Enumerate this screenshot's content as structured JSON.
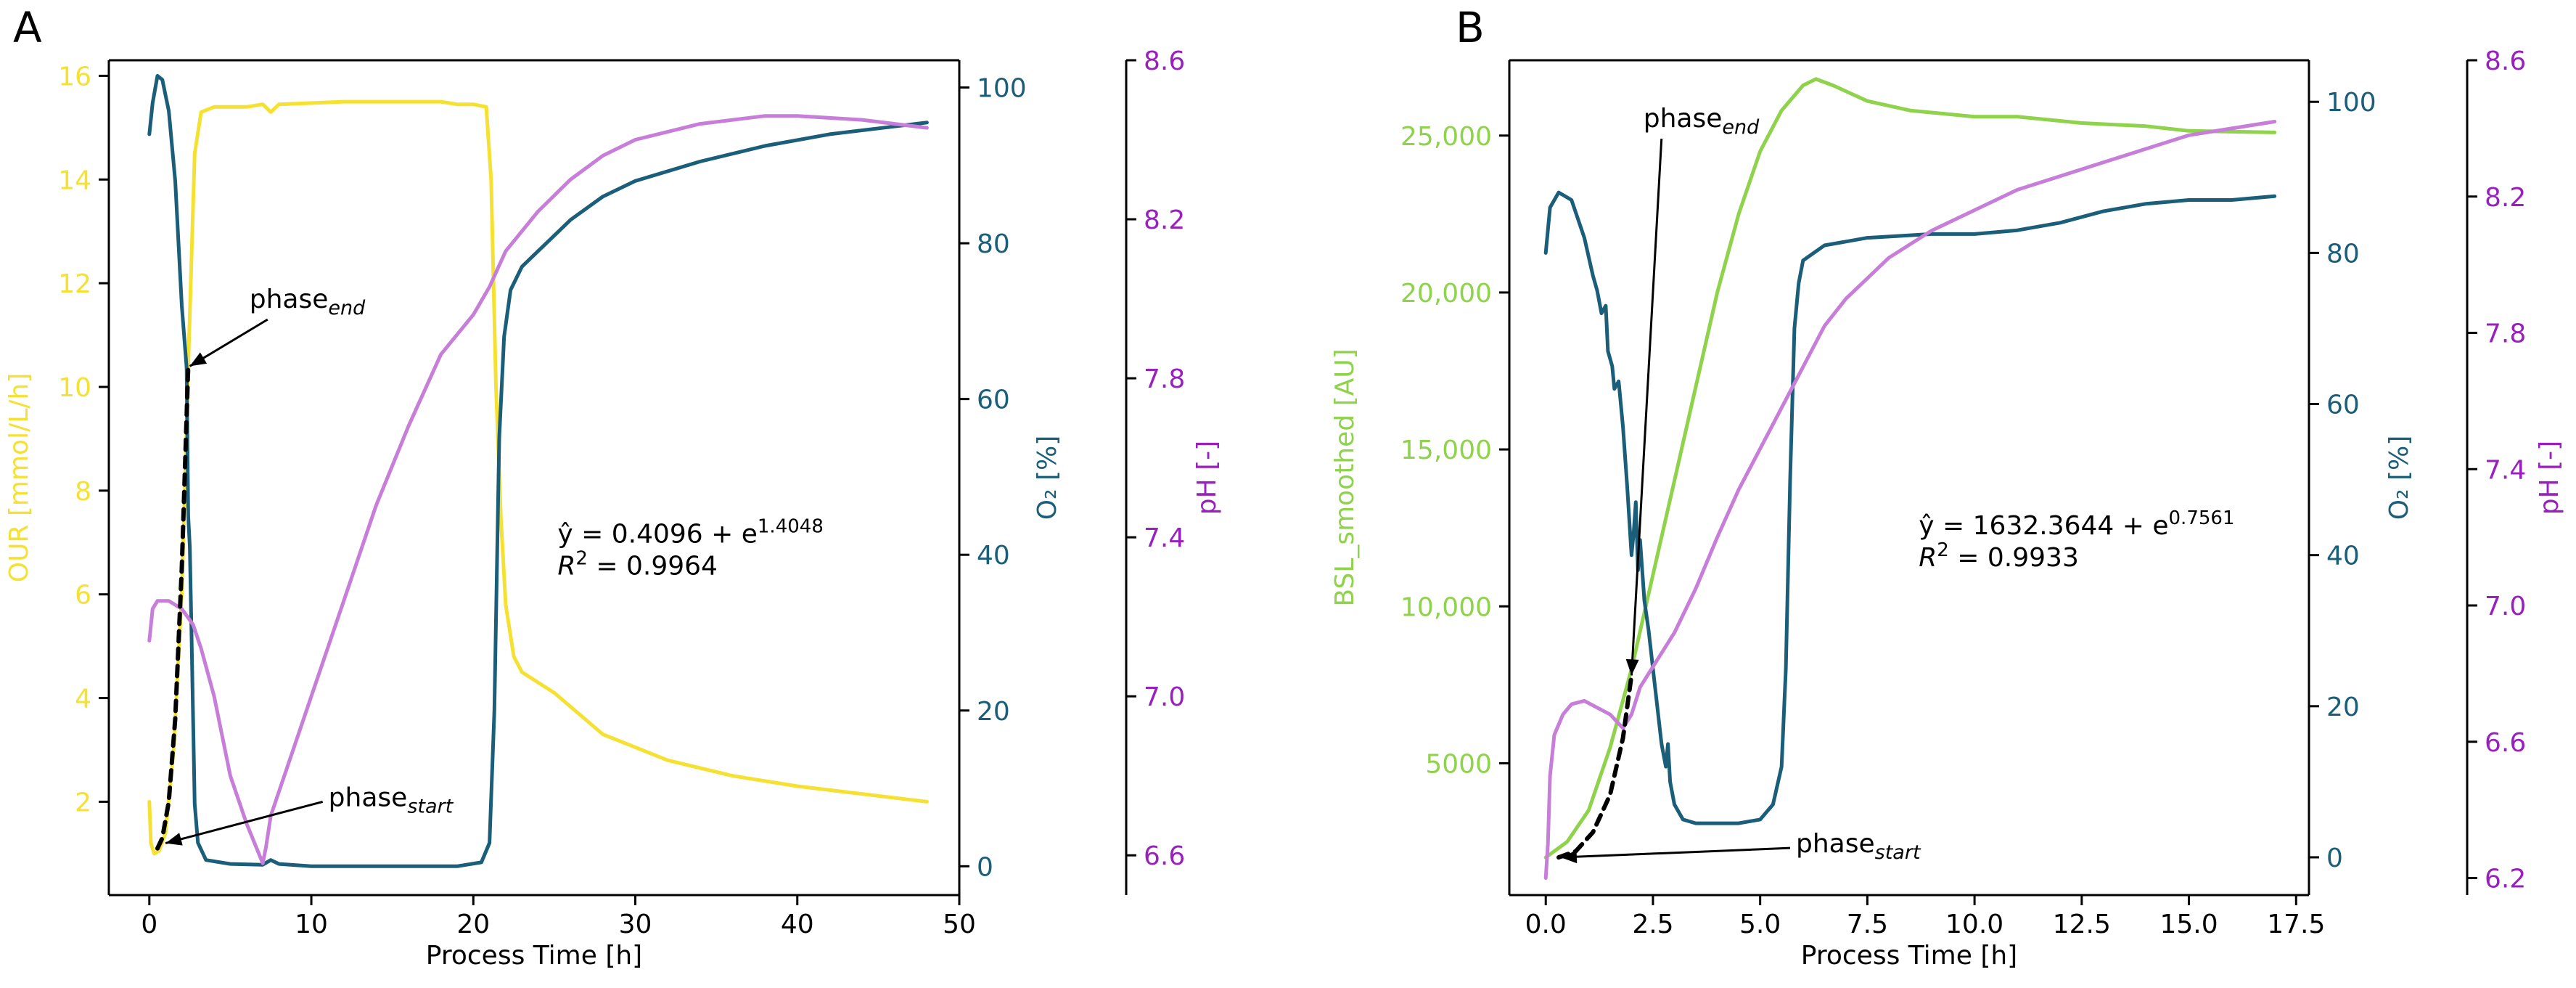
{
  "chart_data": [
    {
      "panel": "A",
      "type": "line",
      "xlabel": "Process Time [h]",
      "xlim": [
        -2.5,
        50
      ],
      "xticks": [
        0,
        10,
        20,
        30,
        40,
        50
      ],
      "axes": {
        "left": {
          "label": "OUR [mmol/L/h]",
          "color": "#f5e132",
          "ylim": [
            0.2,
            16.3
          ],
          "ticks": [
            2,
            4,
            6,
            8,
            10,
            12,
            14,
            16
          ]
        },
        "right1": {
          "label": "O₂ [%]",
          "color": "#1b5e7a",
          "ylim": [
            -3.7,
            103.5
          ],
          "ticks": [
            0,
            20,
            40,
            60,
            80,
            100
          ]
        },
        "right2": {
          "label": "pH [-]",
          "color": "#9a1fbf",
          "ylim": [
            6.5,
            8.6
          ],
          "ticks": [
            6.6,
            7.0,
            7.4,
            7.8,
            8.2,
            8.6
          ]
        }
      },
      "series": [
        {
          "axis": "left",
          "color": "#f5e132",
          "points": [
            [
              0,
              2.0
            ],
            [
              0.1,
              1.2
            ],
            [
              0.3,
              1.0
            ],
            [
              0.6,
              1.05
            ],
            [
              1.0,
              1.4
            ],
            [
              1.5,
              3
            ],
            [
              2.0,
              6
            ],
            [
              2.4,
              10.4
            ],
            [
              2.8,
              14.5
            ],
            [
              3.2,
              15.3
            ],
            [
              4,
              15.4
            ],
            [
              6,
              15.4
            ],
            [
              7,
              15.45
            ],
            [
              7.5,
              15.3
            ],
            [
              8,
              15.45
            ],
            [
              12,
              15.5
            ],
            [
              16,
              15.5
            ],
            [
              18,
              15.5
            ],
            [
              19,
              15.45
            ],
            [
              20,
              15.45
            ],
            [
              20.8,
              15.4
            ],
            [
              21.1,
              14
            ],
            [
              21.4,
              10
            ],
            [
              21.7,
              7.5
            ],
            [
              22,
              5.8
            ],
            [
              22.5,
              4.8
            ],
            [
              23,
              4.5
            ],
            [
              25,
              4.1
            ],
            [
              28,
              3.3
            ],
            [
              32,
              2.8
            ],
            [
              36,
              2.5
            ],
            [
              40,
              2.3
            ],
            [
              44,
              2.15
            ],
            [
              48,
              2.0
            ]
          ]
        },
        {
          "axis": "right1",
          "color": "#1b5e7a",
          "points": [
            [
              0,
              94
            ],
            [
              0.2,
              98
            ],
            [
              0.5,
              101.5
            ],
            [
              0.8,
              101
            ],
            [
              1.2,
              97
            ],
            [
              1.6,
              88
            ],
            [
              2.0,
              72
            ],
            [
              2.3,
              64
            ],
            [
              2.4,
              45
            ],
            [
              2.5,
              41
            ],
            [
              2.6,
              30
            ],
            [
              2.8,
              8
            ],
            [
              3,
              3
            ],
            [
              3.5,
              0.8
            ],
            [
              5,
              0.3
            ],
            [
              7,
              0.2
            ],
            [
              7.5,
              0.8
            ],
            [
              8,
              0.3
            ],
            [
              10,
              0
            ],
            [
              15,
              0
            ],
            [
              19,
              0
            ],
            [
              20.5,
              0.5
            ],
            [
              21,
              3
            ],
            [
              21.3,
              20
            ],
            [
              21.6,
              55
            ],
            [
              21.9,
              68
            ],
            [
              22.3,
              74
            ],
            [
              23,
              77
            ],
            [
              24,
              79
            ],
            [
              25,
              81
            ],
            [
              26,
              83
            ],
            [
              28,
              86
            ],
            [
              30,
              88
            ],
            [
              34,
              90.5
            ],
            [
              38,
              92.5
            ],
            [
              42,
              94
            ],
            [
              46,
              95
            ],
            [
              48,
              95.5
            ]
          ]
        },
        {
          "axis": "right2",
          "color": "#c77ed9",
          "points": [
            [
              0,
              7.14
            ],
            [
              0.2,
              7.22
            ],
            [
              0.5,
              7.24
            ],
            [
              1.2,
              7.24
            ],
            [
              2,
              7.22
            ],
            [
              2.7,
              7.18
            ],
            [
              3.2,
              7.12
            ],
            [
              4,
              7.0
            ],
            [
              5,
              6.8
            ],
            [
              6,
              6.68
            ],
            [
              7,
              6.58
            ],
            [
              7.2,
              6.62
            ],
            [
              7.5,
              6.7
            ],
            [
              8,
              6.76
            ],
            [
              10,
              7.0
            ],
            [
              12,
              7.24
            ],
            [
              14,
              7.48
            ],
            [
              16,
              7.68
            ],
            [
              18,
              7.86
            ],
            [
              20,
              7.96
            ],
            [
              21,
              8.03
            ],
            [
              22,
              8.12
            ],
            [
              24,
              8.22
            ],
            [
              26,
              8.3
            ],
            [
              28,
              8.36
            ],
            [
              30,
              8.4
            ],
            [
              34,
              8.44
            ],
            [
              38,
              8.46
            ],
            [
              40,
              8.46
            ],
            [
              44,
              8.45
            ],
            [
              48,
              8.43
            ]
          ]
        },
        {
          "axis": "left",
          "color": "#000000",
          "dashed": true,
          "points": [
            [
              0.5,
              1.1
            ],
            [
              0.8,
              1.3
            ],
            [
              1.2,
              2.0
            ],
            [
              1.6,
              3.6
            ],
            [
              2.0,
              6.5
            ],
            [
              2.4,
              10.4
            ]
          ]
        }
      ],
      "annotations": [
        {
          "base": "phase",
          "sub": "end",
          "tail": [
            7.3,
            11.3
          ],
          "head": [
            2.5,
            10.4
          ]
        },
        {
          "base": "phase",
          "sub": "start",
          "tail": [
            10.7,
            2.0
          ],
          "head": [
            1.0,
            1.2
          ]
        }
      ],
      "equation": {
        "line1_prefix": "ŷ = 0.4096 + e",
        "line1_exp": "1.4048",
        "line2_prefix": "R",
        "line2_exp": "2",
        "line2_suffix": " = 0.9964",
        "at": [
          25.2,
          7.0
        ]
      }
    },
    {
      "panel": "B",
      "type": "line",
      "xlabel": "Process Time [h]",
      "xlim": [
        -0.85,
        17.8
      ],
      "xticks": [
        0,
        2.5,
        5,
        7.5,
        10,
        12.5,
        15,
        17.5
      ],
      "xticklabels": [
        "0.0",
        "2.5",
        "5.0",
        "7.5",
        "10.0",
        "12.5",
        "15.0",
        "17.5"
      ],
      "axes": {
        "left": {
          "label": "BSL_smoothed [AU]",
          "color": "#8fd24b",
          "ylim": [
            800,
            27400
          ],
          "ticks": [
            5000,
            10000,
            15000,
            20000,
            25000
          ],
          "ticklabels": [
            "5000",
            "10,000",
            "15,000",
            "20,000",
            "25,000"
          ]
        },
        "right1": {
          "label": "O₂ [%]",
          "color": "#1b5e7a",
          "ylim": [
            -5,
            105.5
          ],
          "ticks": [
            0,
            20,
            40,
            60,
            80,
            100
          ]
        },
        "right2": {
          "label": "pH [-]",
          "color": "#9a1fbf",
          "ylim": [
            6.15,
            8.6
          ],
          "ticks": [
            6.2,
            6.6,
            7.0,
            7.4,
            7.8,
            8.2,
            8.6
          ]
        }
      },
      "series": [
        {
          "axis": "left",
          "color": "#8fd24b",
          "points": [
            [
              0,
              2000
            ],
            [
              0.5,
              2500
            ],
            [
              1,
              3500
            ],
            [
              1.5,
              5500
            ],
            [
              2,
              8000
            ],
            [
              2.5,
              11000
            ],
            [
              3,
              14000
            ],
            [
              3.5,
              17000
            ],
            [
              4,
              20000
            ],
            [
              4.5,
              22500
            ],
            [
              5,
              24500
            ],
            [
              5.5,
              25800
            ],
            [
              6,
              26600
            ],
            [
              6.3,
              26800
            ],
            [
              6.7,
              26600
            ],
            [
              7.5,
              26100
            ],
            [
              8.5,
              25800
            ],
            [
              10,
              25600
            ],
            [
              11,
              25600
            ],
            [
              12.5,
              25400
            ],
            [
              14,
              25300
            ],
            [
              15,
              25150
            ],
            [
              17,
              25100
            ]
          ]
        },
        {
          "axis": "right1",
          "color": "#1b5e7a",
          "points": [
            [
              0,
              80
            ],
            [
              0.1,
              86
            ],
            [
              0.3,
              88
            ],
            [
              0.6,
              87
            ],
            [
              0.9,
              82
            ],
            [
              1.1,
              77
            ],
            [
              1.2,
              75
            ],
            [
              1.3,
              72
            ],
            [
              1.4,
              73
            ],
            [
              1.45,
              67
            ],
            [
              1.55,
              65
            ],
            [
              1.6,
              62
            ],
            [
              1.7,
              63
            ],
            [
              1.8,
              57
            ],
            [
              1.9,
              49
            ],
            [
              2.0,
              40
            ],
            [
              2.05,
              43
            ],
            [
              2.1,
              47
            ],
            [
              2.15,
              38
            ],
            [
              2.2,
              42
            ],
            [
              2.3,
              34
            ],
            [
              2.4,
              30
            ],
            [
              2.5,
              25
            ],
            [
              2.7,
              15
            ],
            [
              2.8,
              12
            ],
            [
              2.85,
              15
            ],
            [
              2.9,
              10
            ],
            [
              3.0,
              7
            ],
            [
              3.2,
              5
            ],
            [
              3.5,
              4.5
            ],
            [
              4,
              4.5
            ],
            [
              4.5,
              4.5
            ],
            [
              5,
              5
            ],
            [
              5.3,
              7
            ],
            [
              5.5,
              12
            ],
            [
              5.6,
              25
            ],
            [
              5.7,
              50
            ],
            [
              5.8,
              70
            ],
            [
              5.9,
              76
            ],
            [
              6,
              79
            ],
            [
              6.5,
              81
            ],
            [
              7.5,
              82
            ],
            [
              9,
              82.5
            ],
            [
              10,
              82.5
            ],
            [
              11,
              83
            ],
            [
              12,
              84
            ],
            [
              13,
              85.5
            ],
            [
              14,
              86.5
            ],
            [
              15,
              87
            ],
            [
              16,
              87
            ],
            [
              17,
              87.5
            ]
          ]
        },
        {
          "axis": "right2",
          "color": "#c77ed9",
          "points": [
            [
              0,
              6.2
            ],
            [
              0.05,
              6.3
            ],
            [
              0.1,
              6.5
            ],
            [
              0.2,
              6.62
            ],
            [
              0.4,
              6.68
            ],
            [
              0.6,
              6.71
            ],
            [
              0.9,
              6.72
            ],
            [
              1.2,
              6.7
            ],
            [
              1.5,
              6.68
            ],
            [
              1.8,
              6.64
            ],
            [
              2,
              6.68
            ],
            [
              2.2,
              6.76
            ],
            [
              2.5,
              6.82
            ],
            [
              3,
              6.92
            ],
            [
              3.5,
              7.05
            ],
            [
              4,
              7.2
            ],
            [
              4.5,
              7.34
            ],
            [
              5,
              7.46
            ],
            [
              5.5,
              7.58
            ],
            [
              6,
              7.7
            ],
            [
              6.5,
              7.82
            ],
            [
              7,
              7.9
            ],
            [
              7.5,
              7.96
            ],
            [
              8,
              8.02
            ],
            [
              9,
              8.1
            ],
            [
              10,
              8.16
            ],
            [
              11,
              8.22
            ],
            [
              12,
              8.26
            ],
            [
              13,
              8.3
            ],
            [
              14,
              8.34
            ],
            [
              15,
              8.38
            ],
            [
              16,
              8.4
            ],
            [
              17,
              8.42
            ]
          ]
        },
        {
          "axis": "left",
          "color": "#000000",
          "dashed": true,
          "points": [
            [
              0.3,
              2000
            ],
            [
              0.7,
              2200
            ],
            [
              1.1,
              2800
            ],
            [
              1.5,
              4000
            ],
            [
              1.8,
              5800
            ],
            [
              2.0,
              7800
            ]
          ]
        }
      ],
      "annotations": [
        {
          "base": "phase",
          "sub": "end",
          "tail": [
            2.7,
            24900
          ],
          "head": [
            2.0,
            7800
          ]
        },
        {
          "base": "phase",
          "sub": "start",
          "tail": [
            5.7,
            2300
          ],
          "head": [
            0.35,
            2000
          ]
        }
      ],
      "equation": {
        "line1_prefix": "ŷ = 1632.3644 + e",
        "line1_exp": "0.7561",
        "line2_prefix": "R",
        "line2_exp": "2",
        "line2_suffix": " = 0.9933",
        "at": [
          8.7,
          12300
        ]
      }
    }
  ]
}
